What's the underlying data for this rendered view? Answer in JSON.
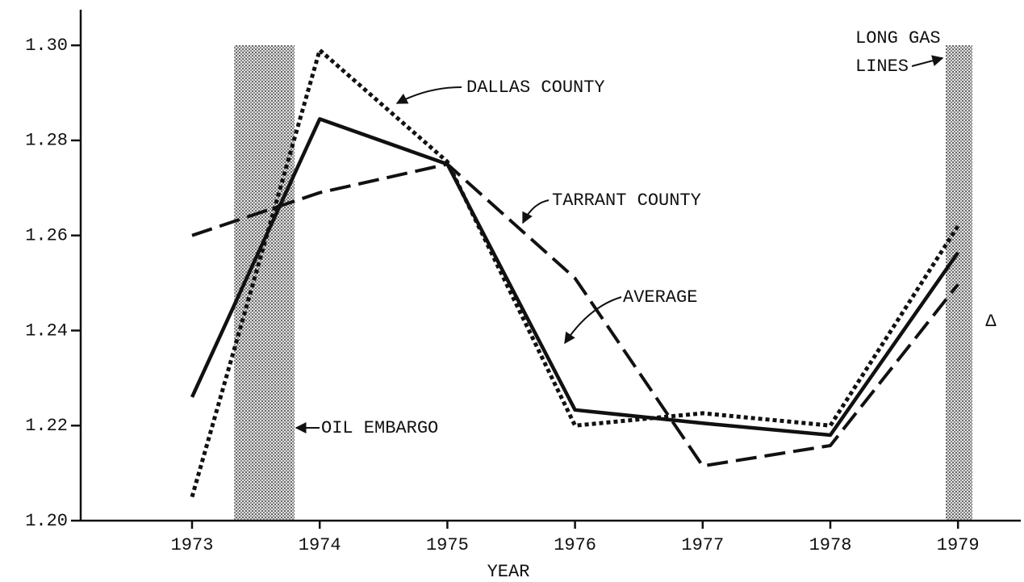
{
  "chart_data": {
    "type": "line",
    "x_label": "YEAR",
    "categories": [
      "1973",
      "1974",
      "1975",
      "1976",
      "1977",
      "1978",
      "1979"
    ],
    "series": [
      {
        "name": "AVERAGE",
        "color": "#111111",
        "values": [
          1.226,
          1.2845,
          1.275,
          1.2233,
          1.2205,
          1.218,
          1.2564
        ]
      },
      {
        "name": "DALLAS COUNTY",
        "color": "#111111",
        "values": [
          1.205,
          1.299,
          1.2755,
          1.22,
          1.2226,
          1.22,
          1.262
        ]
      },
      {
        "name": "TARRANT COUNTY",
        "color": "#111111",
        "values": [
          1.26,
          1.269,
          1.275,
          1.251,
          1.2115,
          1.2158,
          1.2497
        ]
      }
    ],
    "ylim": [
      1.2,
      1.3075
    ],
    "yticks": [
      {
        "value": 1.2,
        "label": "1.20"
      },
      1.22,
      1.24,
      1.26,
      1.28,
      {
        "value": 1.3,
        "label": "1.30"
      }
    ],
    "annotations": [
      "OIL EMBARGO",
      "LONG GAS",
      "LINES",
      "Δ"
    ]
  }
}
